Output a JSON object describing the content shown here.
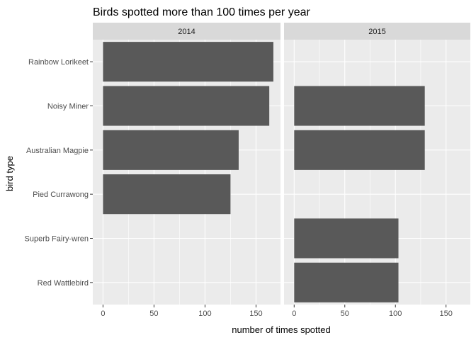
{
  "chart_data": {
    "type": "bar",
    "orientation": "horizontal",
    "title": "Birds spotted more than 100 times per year",
    "xlabel": "number of times spotted",
    "ylabel": "bird type",
    "xlim": [
      -10,
      174
    ],
    "xticks": [
      0,
      50,
      100,
      150
    ],
    "categories": [
      "Rainbow Lorikeet",
      "Noisy Miner",
      "Australian Magpie",
      "Pied Currawong",
      "Superb Fairy-wren",
      "Red Wattlebird"
    ],
    "facets": [
      {
        "name": "2014",
        "values": [
          167,
          163,
          133,
          125,
          null,
          null
        ]
      },
      {
        "name": "2015",
        "values": [
          null,
          129,
          129,
          null,
          103,
          103
        ]
      }
    ],
    "grid": true,
    "legend": "none",
    "colors": {
      "bar": "#595959",
      "panel_background": "#ebebeb",
      "strip_background": "#d9d9d9",
      "grid": "#ffffff"
    }
  }
}
